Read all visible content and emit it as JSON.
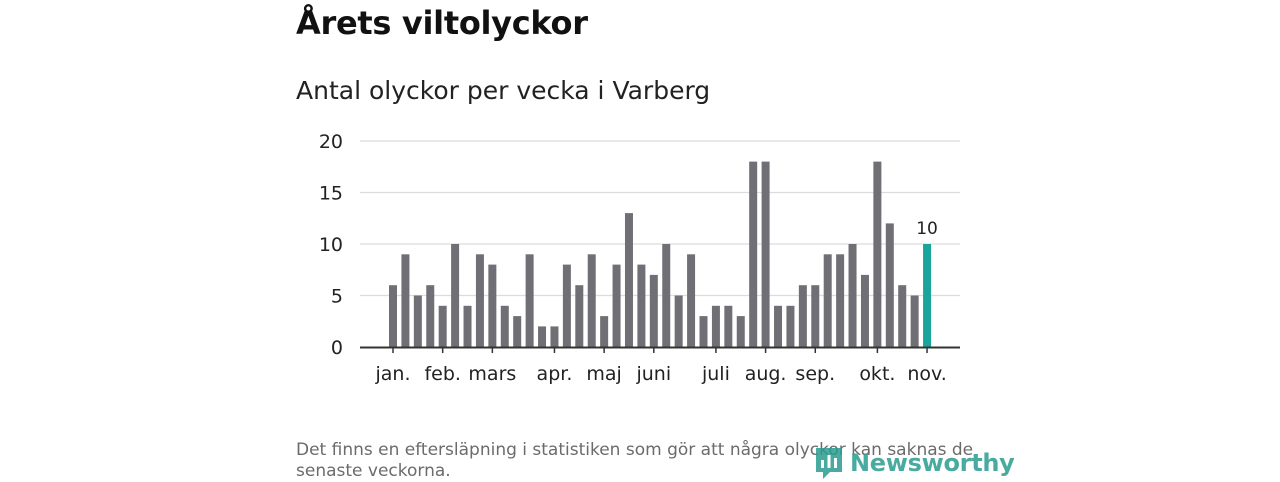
{
  "header": {
    "title": "Årets viltolyckor",
    "subtitle": "Antal olyckor per vecka i Varberg"
  },
  "footnote": "Det finns en eftersläpning i statistiken som gör att några olyckor kan saknas de senaste veckorna.",
  "brand": {
    "name": "Newsworthy",
    "icon": "newsworthy-logo-icon",
    "color": "#2a9d8f"
  },
  "chart_data": {
    "type": "bar",
    "title": "Antal olyckor per vecka i Varberg",
    "xlabel": "",
    "ylabel": "",
    "ylim": [
      0,
      20
    ],
    "yticks": [
      0,
      5,
      10,
      15,
      20
    ],
    "grid": true,
    "legend": "none",
    "bar_color": "#706f75",
    "highlight_color": "#1aa59a",
    "highlight_index": 43,
    "highlight_label": "10",
    "weeks": [
      1,
      2,
      3,
      4,
      5,
      6,
      7,
      8,
      9,
      10,
      11,
      12,
      13,
      14,
      15,
      16,
      17,
      18,
      19,
      20,
      21,
      22,
      23,
      24,
      25,
      26,
      27,
      28,
      29,
      30,
      31,
      32,
      33,
      34,
      35,
      36,
      37,
      38,
      39,
      40,
      41,
      42,
      43,
      44
    ],
    "values": [
      6,
      9,
      5,
      6,
      4,
      10,
      4,
      9,
      8,
      4,
      3,
      9,
      2,
      2,
      8,
      6,
      9,
      3,
      8,
      13,
      8,
      7,
      10,
      5,
      9,
      3,
      4,
      4,
      3,
      18,
      18,
      4,
      4,
      6,
      6,
      9,
      9,
      10,
      7,
      18,
      12,
      6,
      5,
      10
    ],
    "month_labels": [
      {
        "label": "jan.",
        "week": 1
      },
      {
        "label": "feb.",
        "week": 5
      },
      {
        "label": "mars",
        "week": 9
      },
      {
        "label": "apr.",
        "week": 14
      },
      {
        "label": "maj",
        "week": 18
      },
      {
        "label": "juni",
        "week": 22
      },
      {
        "label": "juli",
        "week": 27
      },
      {
        "label": "aug.",
        "week": 31
      },
      {
        "label": "sep.",
        "week": 35
      },
      {
        "label": "okt.",
        "week": 40
      },
      {
        "label": "nov.",
        "week": 44
      }
    ]
  }
}
